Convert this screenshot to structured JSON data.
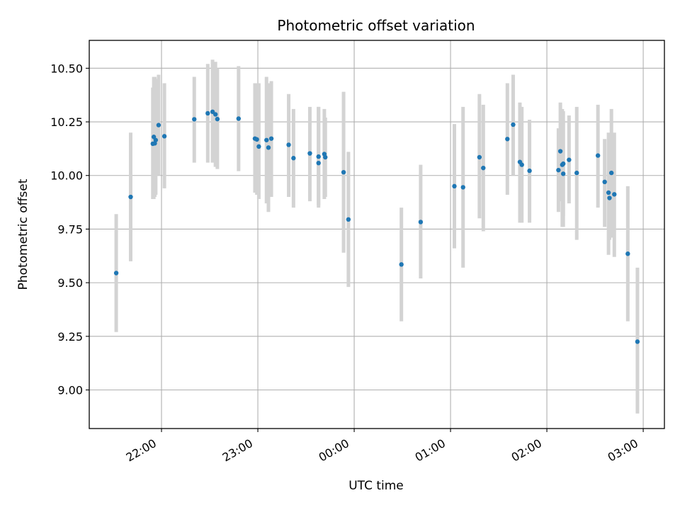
{
  "chart_data": {
    "type": "scatter",
    "title": "Photometric offset variation",
    "xlabel": "UTC time",
    "ylabel": "Photometric offset",
    "x_unit": "UTC hours since 00:00 (negative = before midnight)",
    "xlim": [
      -2.75,
      3.22
    ],
    "ylim": [
      8.82,
      10.63
    ],
    "x_ticks": [
      {
        "value": -2.0,
        "label": "22:00"
      },
      {
        "value": -1.0,
        "label": "23:00"
      },
      {
        "value": 0.0,
        "label": "00:00"
      },
      {
        "value": 1.0,
        "label": "01:00"
      },
      {
        "value": 2.0,
        "label": "02:00"
      },
      {
        "value": 3.0,
        "label": "03:00"
      }
    ],
    "y_ticks": [
      {
        "value": 9.0,
        "label": "9.00"
      },
      {
        "value": 9.25,
        "label": "9.25"
      },
      {
        "value": 9.5,
        "label": "9.50"
      },
      {
        "value": 9.75,
        "label": "9.75"
      },
      {
        "value": 10.0,
        "label": "10.00"
      },
      {
        "value": 10.25,
        "label": "10.25"
      },
      {
        "value": 10.5,
        "label": "10.50"
      }
    ],
    "grid": true,
    "colors": {
      "point": "#1f77b4",
      "errorbar": "#d3d3d3",
      "grid": "#b0b0b0"
    },
    "points": [
      {
        "x": -2.47,
        "y": 9.545,
        "lo": 9.27,
        "hi": 9.82
      },
      {
        "x": -2.32,
        "y": 9.9,
        "lo": 9.6,
        "hi": 10.2
      },
      {
        "x": -2.09,
        "y": 10.148,
        "lo": 9.89,
        "hi": 10.41
      },
      {
        "x": -2.08,
        "y": 10.18,
        "lo": 9.89,
        "hi": 10.46
      },
      {
        "x": -2.07,
        "y": 10.15,
        "lo": 9.9,
        "hi": 10.46
      },
      {
        "x": -2.06,
        "y": 10.165,
        "lo": 9.91,
        "hi": 10.45
      },
      {
        "x": -2.03,
        "y": 10.235,
        "lo": 10.0,
        "hi": 10.47
      },
      {
        "x": -1.97,
        "y": 10.183,
        "lo": 9.94,
        "hi": 10.43
      },
      {
        "x": -1.66,
        "y": 10.262,
        "lo": 10.06,
        "hi": 10.46
      },
      {
        "x": -1.52,
        "y": 10.29,
        "lo": 10.06,
        "hi": 10.52
      },
      {
        "x": -1.47,
        "y": 10.297,
        "lo": 10.06,
        "hi": 10.54
      },
      {
        "x": -1.44,
        "y": 10.285,
        "lo": 10.04,
        "hi": 10.53
      },
      {
        "x": -1.42,
        "y": 10.263,
        "lo": 10.03,
        "hi": 10.5
      },
      {
        "x": -1.2,
        "y": 10.265,
        "lo": 10.02,
        "hi": 10.51
      },
      {
        "x": -1.03,
        "y": 10.172,
        "lo": 9.92,
        "hi": 10.43
      },
      {
        "x": -1.01,
        "y": 10.168,
        "lo": 9.91,
        "hi": 10.43
      },
      {
        "x": -0.99,
        "y": 10.135,
        "lo": 9.89,
        "hi": 10.43
      },
      {
        "x": -0.91,
        "y": 10.165,
        "lo": 9.87,
        "hi": 10.46
      },
      {
        "x": -0.89,
        "y": 10.13,
        "lo": 9.83,
        "hi": 10.43
      },
      {
        "x": -0.86,
        "y": 10.172,
        "lo": 9.9,
        "hi": 10.44
      },
      {
        "x": -0.68,
        "y": 10.143,
        "lo": 9.9,
        "hi": 10.38
      },
      {
        "x": -0.63,
        "y": 10.081,
        "lo": 9.85,
        "hi": 10.31
      },
      {
        "x": -0.46,
        "y": 10.103,
        "lo": 9.88,
        "hi": 10.32
      },
      {
        "x": -0.37,
        "y": 10.088,
        "lo": 9.86,
        "hi": 10.32
      },
      {
        "x": -0.37,
        "y": 10.058,
        "lo": 9.85,
        "hi": 10.32
      },
      {
        "x": -0.31,
        "y": 10.1,
        "lo": 9.89,
        "hi": 10.31
      },
      {
        "x": -0.3,
        "y": 10.085,
        "lo": 9.9,
        "hi": 10.27
      },
      {
        "x": -0.11,
        "y": 10.015,
        "lo": 9.64,
        "hi": 10.39
      },
      {
        "x": -0.06,
        "y": 9.795,
        "lo": 9.48,
        "hi": 10.11
      },
      {
        "x": 0.49,
        "y": 9.585,
        "lo": 9.32,
        "hi": 9.85
      },
      {
        "x": 0.69,
        "y": 9.783,
        "lo": 9.52,
        "hi": 10.05
      },
      {
        "x": 1.04,
        "y": 9.95,
        "lo": 9.66,
        "hi": 10.24
      },
      {
        "x": 1.13,
        "y": 9.945,
        "lo": 9.57,
        "hi": 10.32
      },
      {
        "x": 1.3,
        "y": 10.085,
        "lo": 9.8,
        "hi": 10.38
      },
      {
        "x": 1.34,
        "y": 10.035,
        "lo": 9.74,
        "hi": 10.33
      },
      {
        "x": 1.59,
        "y": 10.17,
        "lo": 9.91,
        "hi": 10.43
      },
      {
        "x": 1.65,
        "y": 10.237,
        "lo": 10.0,
        "hi": 10.47
      },
      {
        "x": 1.72,
        "y": 10.063,
        "lo": 9.78,
        "hi": 10.34
      },
      {
        "x": 1.74,
        "y": 10.05,
        "lo": 9.78,
        "hi": 10.32
      },
      {
        "x": 1.82,
        "y": 10.022,
        "lo": 9.78,
        "hi": 10.26
      },
      {
        "x": 2.12,
        "y": 10.025,
        "lo": 9.83,
        "hi": 10.22
      },
      {
        "x": 2.14,
        "y": 10.113,
        "lo": 9.88,
        "hi": 10.34
      },
      {
        "x": 2.16,
        "y": 10.05,
        "lo": 9.76,
        "hi": 10.31
      },
      {
        "x": 2.17,
        "y": 10.055,
        "lo": 9.81,
        "hi": 10.3
      },
      {
        "x": 2.17,
        "y": 10.008,
        "lo": 9.76,
        "hi": 10.26
      },
      {
        "x": 2.23,
        "y": 10.073,
        "lo": 9.87,
        "hi": 10.28
      },
      {
        "x": 2.31,
        "y": 10.012,
        "lo": 9.7,
        "hi": 10.32
      },
      {
        "x": 2.53,
        "y": 10.093,
        "lo": 9.85,
        "hi": 10.33
      },
      {
        "x": 2.6,
        "y": 9.97,
        "lo": 9.76,
        "hi": 10.17
      },
      {
        "x": 2.64,
        "y": 9.92,
        "lo": 9.63,
        "hi": 10.2
      },
      {
        "x": 2.65,
        "y": 9.895,
        "lo": 9.7,
        "hi": 10.09
      },
      {
        "x": 2.67,
        "y": 10.012,
        "lo": 9.71,
        "hi": 10.31
      },
      {
        "x": 2.7,
        "y": 9.912,
        "lo": 9.62,
        "hi": 10.2
      },
      {
        "x": 2.84,
        "y": 9.635,
        "lo": 9.32,
        "hi": 9.95
      },
      {
        "x": 2.94,
        "y": 9.225,
        "lo": 8.89,
        "hi": 9.57
      }
    ]
  }
}
